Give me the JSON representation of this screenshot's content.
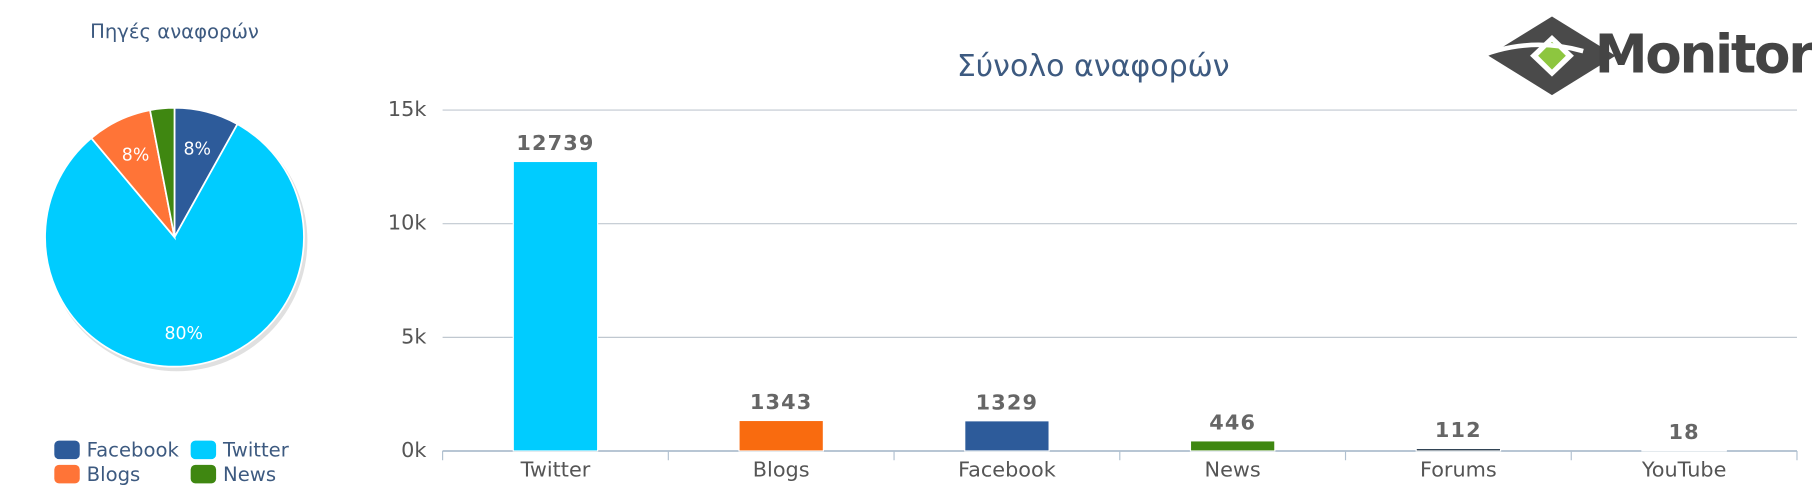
{
  "logo": "Monitor",
  "chart_data": [
    {
      "type": "pie",
      "title": "Πηγές αναφορών",
      "categories": [
        "Facebook",
        "Twitter",
        "Blogs",
        "News"
      ],
      "values": [
        8,
        80,
        8,
        3
      ],
      "value_labels": [
        "8%",
        "80%",
        "8%",
        null
      ],
      "colors": [
        "#2d5b9a",
        "#00ccff",
        "#ff7437",
        "#3f8711"
      ],
      "legend": "bottom"
    },
    {
      "type": "bar",
      "title": "Σύνολο αναφορών",
      "categories": [
        "Twitter",
        "Blogs",
        "Facebook",
        "News",
        "Forums",
        "YouTube"
      ],
      "values": [
        12739,
        1343,
        1329,
        446,
        112,
        18
      ],
      "colors": [
        "#00ccff",
        "#f96b0f",
        "#2d5b9a",
        "#3f8711",
        "#2c3e50",
        "#c4302b"
      ],
      "ylim": [
        0,
        15000
      ],
      "yticks": [
        {
          "value": 0,
          "label": "0k"
        },
        {
          "value": 5000,
          "label": "5k"
        },
        {
          "value": 10000,
          "label": "10k"
        },
        {
          "value": 15000,
          "label": "15k"
        }
      ],
      "grid": true
    }
  ]
}
